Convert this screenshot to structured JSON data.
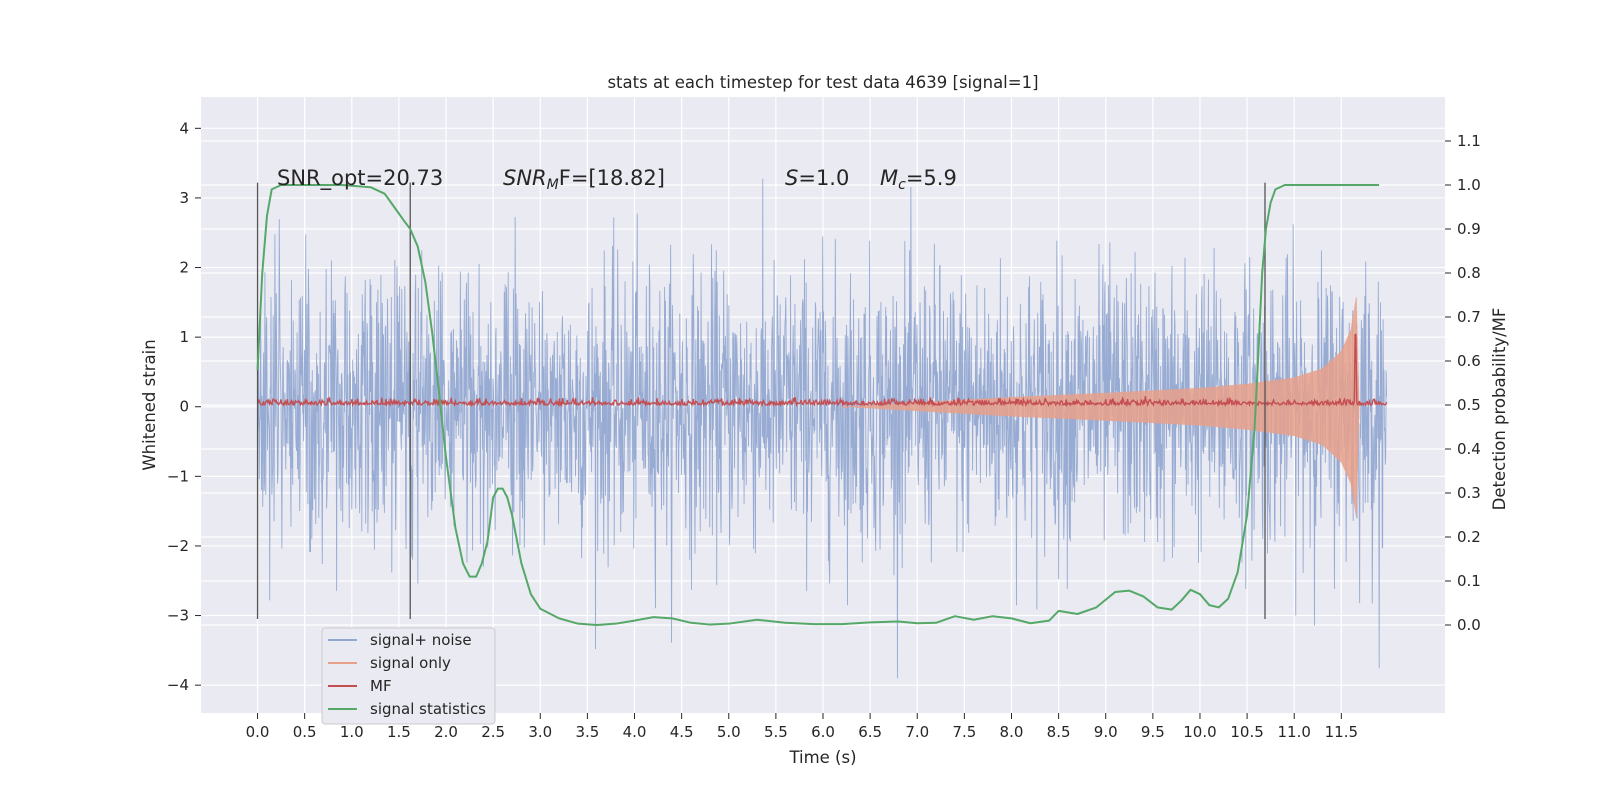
{
  "chart_data": {
    "type": "line",
    "title": "stats at each timestep for test data 4639 [signal=1]",
    "xlabel": "Time (s)",
    "ylabel": "Whitened strain",
    "y2label": "Detection probability/MF",
    "xlim": [
      -0.6,
      12.6
    ],
    "ylim": [
      -4.4,
      4.45
    ],
    "y2lim": [
      -0.2,
      1.2
    ],
    "x_ticks": [
      0.0,
      0.5,
      1.0,
      1.5,
      2.0,
      2.5,
      3.0,
      3.5,
      4.0,
      4.5,
      5.0,
      5.5,
      6.0,
      6.5,
      7.0,
      7.5,
      8.0,
      8.5,
      9.0,
      9.5,
      10.0,
      10.5,
      11.0,
      11.5
    ],
    "x_tick_labels": [
      "0.0",
      "0.5",
      "1.0",
      "1.5",
      "2.0",
      "2.5",
      "3.0",
      "3.5",
      "4.0",
      "4.5",
      "5.0",
      "5.5",
      "6.0",
      "6.5",
      "7.0",
      "7.5",
      "8.0",
      "8.5",
      "9.0",
      "9.5",
      "10.0",
      "10.5",
      "11.0",
      "11.5"
    ],
    "y_ticks": [
      4,
      3,
      2,
      1,
      0,
      -1,
      -2,
      -3,
      -4
    ],
    "y_tick_labels": [
      "4",
      "3",
      "2",
      "1",
      "0",
      "−1",
      "−2",
      "−3",
      "−4"
    ],
    "y2_ticks": [
      1.1,
      1.0,
      0.9,
      0.8,
      0.7,
      0.6,
      0.5,
      0.4,
      0.3,
      0.2,
      0.1,
      0.0
    ],
    "y2_tick_labels": [
      "1.1",
      "1.0",
      "0.9",
      "0.8",
      "0.7",
      "0.6",
      "0.5",
      "0.4",
      "0.3",
      "0.2",
      "0.1",
      "0.0"
    ],
    "grid": true,
    "legend_position": "lower-left",
    "annotations": {
      "snr_opt": "SNR_opt=20.73",
      "snr_mf_base": "SNR",
      "snr_mf_sub": "M",
      "snr_mf_rest": "F=[18.82]",
      "s_sym": "S",
      "s_val": "=1.0",
      "mc_sym": "M",
      "mc_sub": "c",
      "mc_val": "=5.9"
    },
    "series": [
      {
        "name": "signal+ noise",
        "color": "#92a8d1",
        "kind": "noise",
        "axis": "left",
        "x_range": [
          0.0,
          11.98
        ],
        "amplitude_std": 1.0
      },
      {
        "name": "signal only",
        "color": "#e7a08a",
        "kind": "chirp",
        "axis": "left",
        "x_range": [
          6.2,
          11.69
        ],
        "envelope": {
          "x": [
            6.2,
            8.0,
            9.0,
            10.0,
            10.5,
            11.0,
            11.3,
            11.5,
            11.6,
            11.66,
            11.69
          ],
          "amp": [
            0.0,
            0.14,
            0.2,
            0.27,
            0.33,
            0.42,
            0.55,
            0.8,
            1.1,
            1.6,
            0.0
          ]
        }
      },
      {
        "name": "MF",
        "color": "#c44e52",
        "kind": "mf",
        "axis": "right",
        "x_range": [
          0.0,
          11.98
        ],
        "baseline": 0.5,
        "peak": {
          "x": 11.65,
          "y": 0.66
        }
      },
      {
        "name": "signal statistics",
        "color": "#55a868",
        "kind": "line",
        "axis": "right",
        "x": [
          0.0,
          0.05,
          0.1,
          0.15,
          0.25,
          0.4,
          0.6,
          0.9,
          1.2,
          1.35,
          1.45,
          1.55,
          1.62,
          1.7,
          1.78,
          1.85,
          1.92,
          2.0,
          2.05,
          2.1,
          2.18,
          2.25,
          2.32,
          2.38,
          2.44,
          2.5,
          2.55,
          2.6,
          2.65,
          2.7,
          2.8,
          2.9,
          3.0,
          3.2,
          3.4,
          3.6,
          3.8,
          4.0,
          4.2,
          4.4,
          4.6,
          4.8,
          5.0,
          5.3,
          5.6,
          5.9,
          6.2,
          6.5,
          6.8,
          7.0,
          7.2,
          7.4,
          7.6,
          7.8,
          8.0,
          8.2,
          8.4,
          8.5,
          8.7,
          8.9,
          9.1,
          9.25,
          9.4,
          9.55,
          9.7,
          9.8,
          9.9,
          10.0,
          10.1,
          10.2,
          10.3,
          10.4,
          10.5,
          10.58,
          10.62,
          10.66,
          10.7,
          10.75,
          10.8,
          10.9,
          11.0,
          11.2,
          11.5,
          11.7,
          11.9
        ],
        "y": [
          0.58,
          0.8,
          0.93,
          0.99,
          1.0,
          1.0,
          1.0,
          1.0,
          0.995,
          0.98,
          0.95,
          0.92,
          0.9,
          0.86,
          0.78,
          0.67,
          0.54,
          0.38,
          0.3,
          0.22,
          0.14,
          0.11,
          0.11,
          0.14,
          0.19,
          0.29,
          0.31,
          0.31,
          0.29,
          0.25,
          0.14,
          0.07,
          0.037,
          0.015,
          0.003,
          0.0,
          0.003,
          0.01,
          0.018,
          0.015,
          0.005,
          0.001,
          0.003,
          0.012,
          0.005,
          0.002,
          0.002,
          0.006,
          0.008,
          0.004,
          0.005,
          0.02,
          0.012,
          0.02,
          0.015,
          0.004,
          0.01,
          0.032,
          0.025,
          0.04,
          0.075,
          0.078,
          0.065,
          0.04,
          0.035,
          0.055,
          0.08,
          0.07,
          0.045,
          0.04,
          0.06,
          0.12,
          0.25,
          0.45,
          0.62,
          0.8,
          0.9,
          0.96,
          0.99,
          1.0,
          1.0,
          1.0,
          1.0,
          1.0,
          1.0
        ]
      }
    ],
    "vertical_lines": [
      {
        "x": 0.0,
        "y": [
          -3.05,
          3.22
        ]
      },
      {
        "x": 1.62,
        "y": [
          -3.05,
          3.22
        ]
      },
      {
        "x": 10.69,
        "y": [
          -3.05,
          3.22
        ]
      }
    ]
  }
}
